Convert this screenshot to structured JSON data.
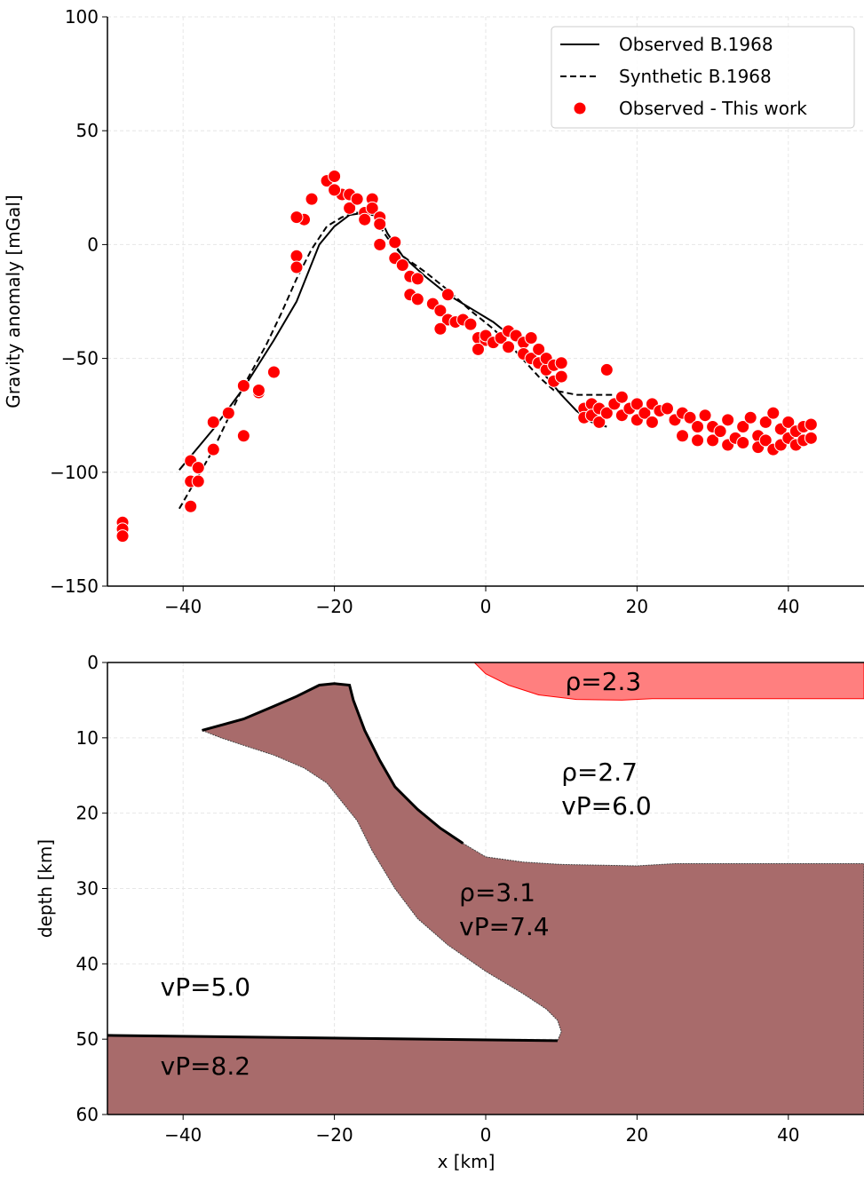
{
  "chart_data": [
    {
      "type": "line",
      "ylabel": "Gravity anomaly [mGal]",
      "xlim": [
        -50,
        50
      ],
      "ylim": [
        -150,
        100
      ],
      "xticks": [
        {
          "value": -40,
          "label": "−40"
        },
        {
          "value": -20,
          "label": "−20"
        },
        0,
        20,
        40
      ],
      "yticks": [
        {
          "value": -150,
          "label": "−150"
        },
        {
          "value": -100,
          "label": "−100"
        },
        {
          "value": -50,
          "label": "−50"
        },
        0,
        50,
        100
      ],
      "grid": true,
      "legend": "upper right",
      "series": [
        {
          "name": "Observed B.1968",
          "type": "line",
          "color": "#000000",
          "dash": false,
          "x": [
            -40.5,
            -36,
            -32,
            -28,
            -25,
            -22,
            -20,
            -18,
            -16,
            -14,
            -13,
            -11,
            -8,
            -5,
            -2,
            1,
            4,
            7,
            10,
            12,
            14,
            16
          ],
          "values": [
            -99,
            -81,
            -63,
            -42,
            -25,
            0,
            8,
            13,
            14,
            12,
            5,
            -5,
            -14,
            -22,
            -28,
            -34,
            -42,
            -54,
            -66,
            -73,
            -78,
            -80
          ]
        },
        {
          "name": "Synthetic B.1968",
          "type": "line",
          "color": "#000000",
          "dash": true,
          "x": [
            -40.5,
            -36,
            -32,
            -29,
            -27,
            -25,
            -23,
            -21,
            -19,
            -17,
            -15,
            -13,
            -11,
            -8,
            -5,
            -2,
            1,
            4,
            7,
            9,
            12,
            15,
            17
          ],
          "values": [
            -116,
            -90,
            -62,
            -44,
            -30,
            -15,
            -2,
            8,
            12,
            14,
            13,
            3,
            -5,
            -12,
            -20,
            -29,
            -37,
            -47,
            -58,
            -64,
            -66,
            -66,
            -66
          ]
        },
        {
          "name": "Observed - This work",
          "type": "scatter",
          "color": "#ff0000",
          "x": [
            -48,
            -48,
            -48,
            -39,
            -39,
            -38,
            -38,
            -39,
            -36,
            -36,
            -34,
            -32,
            -32,
            -30,
            -30,
            -28,
            -25,
            -25,
            -24,
            -25,
            -23,
            -21,
            -20,
            -19,
            -20,
            -18,
            -18,
            -17,
            -16,
            -16,
            -15,
            -15,
            -14,
            -14,
            -14,
            -12,
            -12,
            -11,
            -10,
            -10,
            -9,
            -9,
            -7,
            -6,
            -5,
            -5,
            -6,
            -4,
            -3,
            -2,
            -1,
            0,
            -1,
            0,
            1,
            2,
            3,
            3,
            4,
            5,
            6,
            5,
            6,
            7,
            7,
            8,
            8,
            9,
            9,
            10,
            10,
            13,
            13,
            14,
            14,
            15,
            15,
            16,
            16,
            17,
            18,
            18,
            19,
            20,
            20,
            21,
            22,
            22,
            23,
            24,
            25,
            26,
            26,
            27,
            28,
            28,
            29,
            30,
            30,
            31,
            32,
            32,
            33,
            34,
            34,
            35,
            36,
            36,
            37,
            37,
            38,
            38,
            39,
            39,
            40,
            40,
            41,
            41,
            42,
            42,
            43,
            43
          ],
          "values": [
            -122,
            -125,
            -128,
            -95,
            -104,
            -104,
            -98,
            -115,
            -78,
            -90,
            -74,
            -62,
            -84,
            -65,
            -64,
            -56,
            -5,
            -10,
            11,
            12,
            20,
            28,
            30,
            22,
            24,
            22,
            16,
            20,
            14,
            11,
            20,
            16,
            12,
            9,
            0,
            1,
            -6,
            -9,
            -14,
            -22,
            -15,
            -24,
            -26,
            -29,
            -22,
            -33,
            -37,
            -34,
            -33,
            -35,
            -41,
            -42,
            -46,
            -40,
            -43,
            -41,
            -45,
            -38,
            -40,
            -43,
            -41,
            -48,
            -50,
            -46,
            -52,
            -55,
            -50,
            -53,
            -60,
            -58,
            -52,
            -72,
            -76,
            -70,
            -75,
            -72,
            -78,
            -55,
            -74,
            -70,
            -67,
            -75,
            -72,
            -70,
            -77,
            -74,
            -70,
            -78,
            -73,
            -72,
            -77,
            -74,
            -84,
            -76,
            -80,
            -86,
            -75,
            -80,
            -86,
            -82,
            -77,
            -88,
            -85,
            -80,
            -87,
            -76,
            -84,
            -89,
            -78,
            -86,
            -74,
            -90,
            -81,
            -88,
            -78,
            -85,
            -82,
            -88,
            -80,
            -86,
            -79,
            -85
          ]
        }
      ]
    },
    {
      "type": "area",
      "xlabel": "x [km]",
      "ylabel": "depth [km]",
      "xlim": [
        -50,
        50
      ],
      "ylim": [
        60,
        0
      ],
      "xticks": [
        {
          "value": -40,
          "label": "−40"
        },
        {
          "value": -20,
          "label": "−20"
        },
        0,
        20,
        40
      ],
      "yticks": [
        0,
        10,
        20,
        30,
        40,
        50,
        60
      ],
      "grid": true,
      "series": [
        {
          "type": "area",
          "color": "#ff7f7f",
          "edgecolor": "#ff0000",
          "x": [
            -1.5,
            0,
            3,
            7,
            12,
            18,
            22,
            50,
            50
          ],
          "values": [
            0,
            1.5,
            3,
            4.3,
            4.9,
            5,
            4.8,
            4.8,
            0
          ]
        },
        {
          "type": "area",
          "color": "#a86b6b",
          "edgecolor": "#444444",
          "x": [
            -37.5,
            -32,
            -28,
            -25,
            -22,
            -20,
            -18,
            -17.5,
            -16,
            -14,
            -12,
            -9,
            -6,
            -3,
            0,
            5,
            10,
            20,
            25,
            50,
            50,
            -50,
            -50,
            9.5,
            10,
            9.5,
            8,
            5,
            0,
            -5,
            -9,
            -12,
            -15,
            -17,
            -19,
            -21,
            -24,
            -28,
            -32,
            -35
          ],
          "values": [
            9,
            7.5,
            5.8,
            4.5,
            3,
            2.8,
            3,
            5,
            9,
            13,
            16.5,
            19.5,
            22,
            24,
            25.8,
            26.5,
            26.8,
            27,
            26.7,
            26.7,
            60,
            60,
            49.5,
            50.2,
            49,
            47.5,
            46,
            44,
            41,
            37.5,
            34,
            30,
            25,
            21,
            18.5,
            16,
            14,
            12.3,
            11,
            10
          ]
        },
        {
          "type": "line",
          "color": "#000000",
          "x": [
            -37.5,
            -32,
            -28,
            -25,
            -22,
            -20,
            -18,
            -17.5,
            -16,
            -14,
            -12,
            -9,
            -6,
            -3
          ],
          "values": [
            9,
            7.5,
            5.8,
            4.5,
            3,
            2.8,
            3,
            5,
            9,
            13,
            16.5,
            19.5,
            22,
            24
          ]
        },
        {
          "type": "line",
          "color": "#000000",
          "x": [
            -50,
            9.5
          ],
          "values": [
            49.5,
            50.2
          ]
        }
      ],
      "annotations": [
        "ρ=2.3",
        "ρ=2.7",
        "vP=6.0",
        "ρ=3.1",
        "vP=7.4",
        "vP=5.0",
        "vP=8.2"
      ]
    }
  ]
}
